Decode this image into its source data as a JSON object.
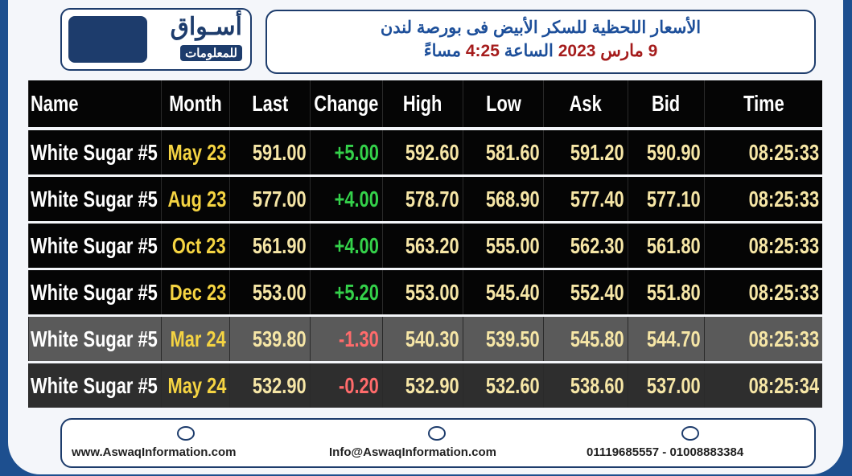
{
  "header": {
    "logo": {
      "name": "أسـواق",
      "tagline": "للمعلومات"
    },
    "title": "الأسعار اللحظية للسكر الأبيض فى بورصة لندن",
    "subtitle": [
      "9 مارس",
      "2023",
      "الساعة",
      "4:25",
      "مساءً"
    ]
  },
  "table": {
    "columns": [
      "Name",
      "Month",
      "Last",
      "Change",
      "High",
      "Low",
      "Ask",
      "Bid",
      "Time"
    ],
    "rows": [
      [
        "White Sugar #5",
        "May 23",
        "591.00",
        "+5.00",
        "592.60",
        "581.60",
        "591.20",
        "590.90",
        "08:25:33"
      ],
      [
        "White Sugar #5",
        "Aug 23",
        "577.00",
        "+4.00",
        "578.70",
        "568.90",
        "577.40",
        "577.10",
        "08:25:33"
      ],
      [
        "White Sugar #5",
        "Oct 23",
        "561.90",
        "+4.00",
        "563.20",
        "555.00",
        "562.30",
        "561.80",
        "08:25:33"
      ],
      [
        "White Sugar #5",
        "Dec 23",
        "553.00",
        "+5.20",
        "553.00",
        "545.40",
        "552.40",
        "551.80",
        "08:25:33"
      ],
      [
        "White Sugar #5",
        "Mar 24",
        "539.80",
        "-1.30",
        "540.30",
        "539.50",
        "545.80",
        "544.70",
        "08:25:33"
      ],
      [
        "White Sugar #5",
        "May 24",
        "532.90",
        "-0.20",
        "532.90",
        "532.60",
        "538.60",
        "537.00",
        "08:25:34"
      ]
    ]
  },
  "footer": {
    "website": "www.AswaqInformation.com",
    "email": "Info@AswaqInformation.com",
    "phones": "01119685557 - 01008883384"
  }
}
